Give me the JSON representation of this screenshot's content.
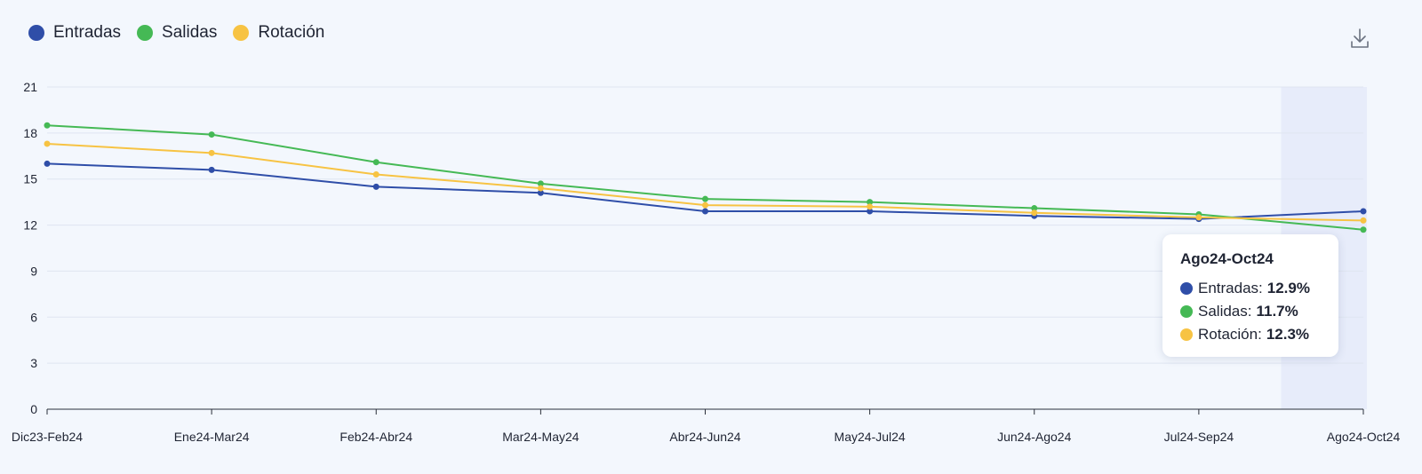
{
  "legend": {
    "items": [
      {
        "label": "Entradas",
        "color": "#2f4ea8"
      },
      {
        "label": "Salidas",
        "color": "#45b955"
      },
      {
        "label": "Rotación",
        "color": "#f7c343"
      }
    ]
  },
  "toolbar": {
    "download_icon": "download-icon"
  },
  "tooltip": {
    "title": "Ago24-Oct24",
    "rows": [
      {
        "label": "Entradas:",
        "value": "12.9%",
        "color": "#2f4ea8"
      },
      {
        "label": "Salidas:",
        "value": "11.7%",
        "color": "#45b955"
      },
      {
        "label": "Rotación:",
        "value": "12.3%",
        "color": "#f7c343"
      }
    ]
  },
  "chart_data": {
    "type": "line",
    "categories": [
      "Dic23-Feb24",
      "Ene24-Mar24",
      "Feb24-Abr24",
      "Mar24-May24",
      "Abr24-Jun24",
      "May24-Jul24",
      "Jun24-Ago24",
      "Jul24-Sep24",
      "Ago24-Oct24"
    ],
    "series": [
      {
        "name": "Entradas",
        "color": "#2f4ea8",
        "values": [
          16.0,
          15.6,
          14.5,
          14.1,
          12.9,
          12.9,
          12.6,
          12.4,
          12.9
        ]
      },
      {
        "name": "Salidas",
        "color": "#45b955",
        "values": [
          18.5,
          17.9,
          16.1,
          14.7,
          13.7,
          13.5,
          13.1,
          12.7,
          11.7
        ]
      },
      {
        "name": "Rotación",
        "color": "#f7c343",
        "values": [
          17.3,
          16.7,
          15.3,
          14.4,
          13.3,
          13.2,
          12.8,
          12.5,
          12.3
        ]
      }
    ],
    "yticks": [
      0,
      3,
      6,
      9,
      12,
      15,
      18,
      21
    ],
    "ylim": [
      0,
      21
    ],
    "grid": true,
    "legend_position": "top-left",
    "highlighted_category": "Ago24-Oct24"
  }
}
